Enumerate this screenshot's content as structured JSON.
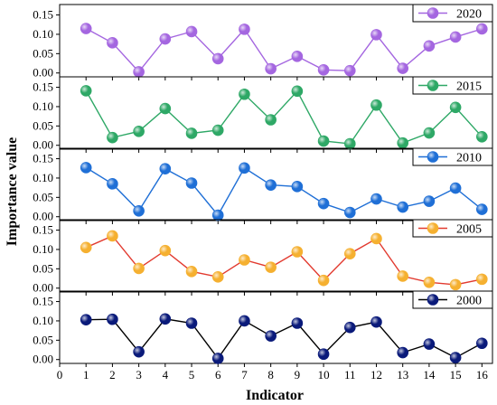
{
  "chart_data": {
    "type": "line",
    "xlabel": "Indicator",
    "ylabel": "Importance value",
    "x": [
      1,
      2,
      3,
      4,
      5,
      6,
      7,
      8,
      9,
      10,
      11,
      12,
      13,
      14,
      15,
      16
    ],
    "x_ticks": [
      0,
      1,
      2,
      3,
      4,
      5,
      6,
      7,
      8,
      9,
      10,
      11,
      12,
      13,
      14,
      15,
      16
    ],
    "xlim": [
      0,
      16.4
    ],
    "y_ticks": [
      "0.00",
      "0.05",
      "0.10",
      "0.15"
    ],
    "ylim": [
      -0.01,
      0.17
    ],
    "grid": false,
    "legend_position": "top-right",
    "panels": [
      {
        "name": "2020",
        "color": "#a466e0",
        "values": [
          0.115,
          0.078,
          0.003,
          0.088,
          0.107,
          0.037,
          0.113,
          0.011,
          0.043,
          0.008,
          0.006,
          0.099,
          0.012,
          0.07,
          0.093,
          0.114
        ]
      },
      {
        "name": "2015",
        "color": "#2ea866",
        "values": [
          0.141,
          0.02,
          0.036,
          0.095,
          0.031,
          0.039,
          0.132,
          0.066,
          0.14,
          0.011,
          0.004,
          0.104,
          0.006,
          0.032,
          0.098,
          0.022
        ]
      },
      {
        "name": "2010",
        "color": "#1f6fd6",
        "values": [
          0.127,
          0.085,
          0.015,
          0.124,
          0.087,
          0.004,
          0.126,
          0.082,
          0.078,
          0.034,
          0.011,
          0.046,
          0.025,
          0.04,
          0.074,
          0.019
        ]
      },
      {
        "name": "2005",
        "color": "#e23a2f",
        "marker_color": "#f5b030",
        "values": [
          0.105,
          0.135,
          0.051,
          0.097,
          0.043,
          0.029,
          0.073,
          0.054,
          0.094,
          0.02,
          0.089,
          0.128,
          0.031,
          0.015,
          0.009,
          0.023
        ]
      },
      {
        "name": "2000",
        "color": "#000000",
        "marker_color": "#0a1a7a",
        "values": [
          0.103,
          0.104,
          0.02,
          0.105,
          0.094,
          0.003,
          0.1,
          0.061,
          0.094,
          0.014,
          0.083,
          0.097,
          0.018,
          0.04,
          0.005,
          0.042
        ]
      }
    ]
  }
}
